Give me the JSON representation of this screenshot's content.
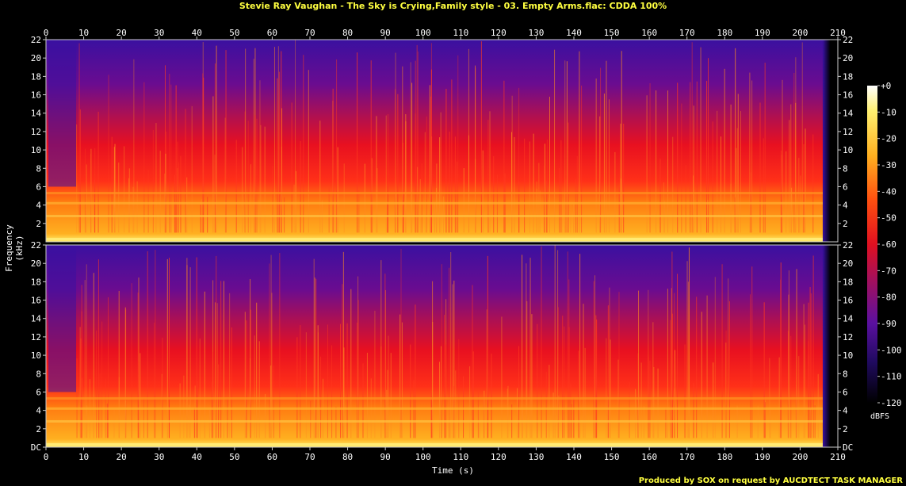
{
  "title": "Stevie Ray Vaughan - The Sky is Crying,Family style - 03. Empty Arms.flac: CDDA 100%",
  "footer": "Produced by SOX on request by AUCDTECT TASK MANAGER",
  "colorbar": {
    "unit": "dBFS",
    "ticks": [
      "+0",
      "-10",
      "-20",
      "-30",
      "-40",
      "-50",
      "-60",
      "-70",
      "-80",
      "-90",
      "-100",
      "-110",
      "-120"
    ]
  },
  "chart_data": {
    "type": "heatmap",
    "title": "Stevie Ray Vaughan - The Sky is Crying,Family style - 03. Empty Arms.flac: CDDA 100%",
    "xlabel": "Time (s)",
    "ylabel": "Frequency (kHz)",
    "xlim": [
      0,
      210
    ],
    "x_ticks": [
      "0",
      "10",
      "20",
      "30",
      "40",
      "50",
      "60",
      "70",
      "80",
      "90",
      "100",
      "110",
      "120",
      "130",
      "140",
      "150",
      "160",
      "170",
      "180",
      "190",
      "200",
      "210"
    ],
    "channels": [
      {
        "ylim": [
          0,
          22
        ],
        "y_ticks": [
          "2",
          "4",
          "6",
          "8",
          "10",
          "12",
          "14",
          "16",
          "18",
          "20",
          "22"
        ]
      },
      {
        "ylim": [
          0,
          22
        ],
        "y_ticks": [
          "DC",
          "2",
          "4",
          "6",
          "8",
          "10",
          "12",
          "14",
          "16",
          "18",
          "20",
          "22"
        ]
      }
    ],
    "color_range_dbfs": [
      -120,
      0
    ],
    "audio_end_s": 206,
    "colors": {
      "high": "#ffffe0",
      "mid": "#ff2020",
      "low": "#3a1090",
      "floor": "#000000"
    }
  }
}
